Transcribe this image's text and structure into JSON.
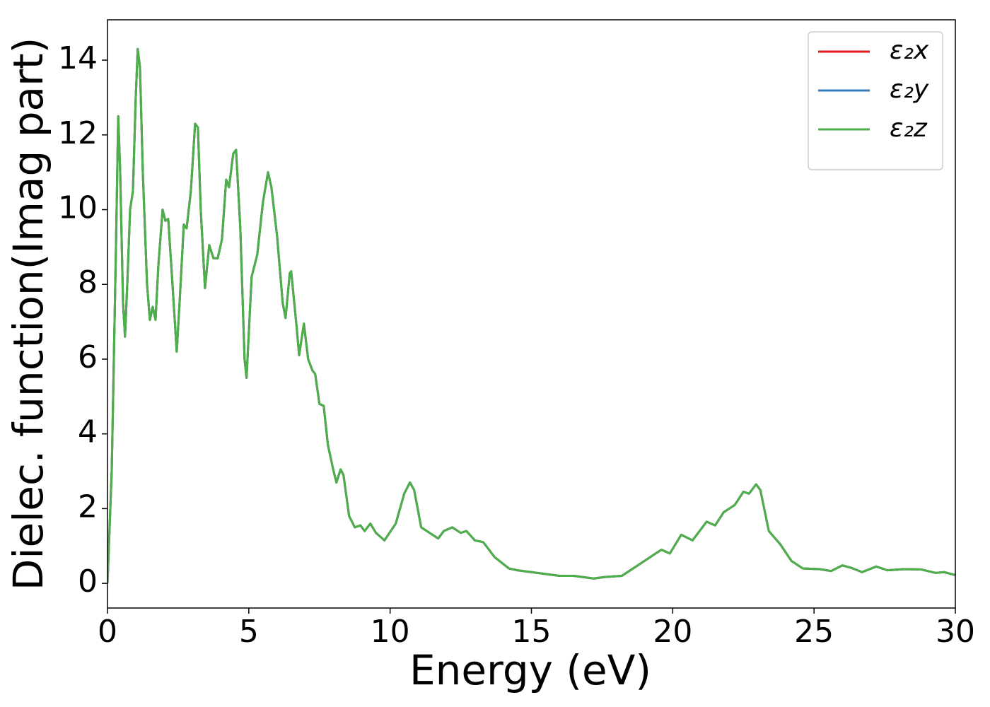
{
  "chart_data": {
    "type": "line",
    "xlabel": "Energy (eV)",
    "ylabel": "Dielec. function(Imag part)",
    "x": [
      0,
      0.15,
      0.3,
      0.38,
      0.45,
      0.55,
      0.62,
      0.7,
      0.8,
      0.9,
      1.0,
      1.07,
      1.15,
      1.25,
      1.4,
      1.5,
      1.6,
      1.7,
      1.8,
      1.95,
      2.05,
      2.15,
      2.3,
      2.45,
      2.55,
      2.7,
      2.8,
      2.95,
      3.1,
      3.2,
      3.3,
      3.45,
      3.6,
      3.75,
      3.9,
      4.05,
      4.2,
      4.3,
      4.45,
      4.55,
      4.7,
      4.85,
      4.92,
      5.1,
      5.3,
      5.5,
      5.68,
      5.8,
      6.0,
      6.2,
      6.3,
      6.45,
      6.5,
      6.7,
      6.78,
      6.95,
      7.1,
      7.25,
      7.35,
      7.5,
      7.65,
      7.8,
      8.0,
      8.1,
      8.25,
      8.35,
      8.55,
      8.75,
      8.95,
      9.1,
      9.3,
      9.5,
      9.8,
      10.2,
      10.5,
      10.7,
      10.85,
      11.1,
      11.4,
      11.7,
      11.9,
      12.2,
      12.5,
      12.7,
      13.0,
      13.3,
      13.7,
      14.2,
      14.5,
      15,
      15.5,
      16.0,
      16.5,
      17.2,
      17.6,
      18.2,
      18.6,
      19.0,
      19.6,
      19.9,
      20.3,
      20.7,
      21.2,
      21.5,
      21.8,
      22.2,
      22.5,
      22.7,
      22.95,
      23.1,
      23.4,
      23.8,
      24.2,
      24.6,
      25.2,
      25.6,
      26.0,
      26.3,
      26.7,
      27.2,
      27.6,
      28.2,
      28.8,
      29.3,
      29.6,
      30.0
    ],
    "series": [
      {
        "name": "ε₂x",
        "color": "#e41a1c",
        "values": [
          0,
          3,
          9,
          12.5,
          11,
          7.5,
          6.6,
          8,
          10,
          10.5,
          13,
          14.3,
          13.8,
          11,
          8,
          7.05,
          7.4,
          7.05,
          8.5,
          10,
          9.7,
          9.75,
          8,
          6.2,
          7.5,
          9.6,
          9.5,
          10.5,
          12.3,
          12.2,
          10,
          7.9,
          9.05,
          8.7,
          8.7,
          9.2,
          10.8,
          10.6,
          11.5,
          11.6,
          9.5,
          6,
          5.5,
          8.2,
          8.8,
          10.2,
          11,
          10.6,
          9.3,
          7.5,
          7.1,
          8.3,
          8.35,
          6.8,
          6.1,
          6.95,
          6,
          5.7,
          5.6,
          4.8,
          4.75,
          3.7,
          3,
          2.7,
          3.05,
          2.9,
          1.8,
          1.5,
          1.55,
          1.4,
          1.6,
          1.35,
          1.15,
          1.6,
          2.4,
          2.7,
          2.5,
          1.5,
          1.35,
          1.2,
          1.4,
          1.5,
          1.35,
          1.4,
          1.15,
          1.1,
          0.7,
          0.4,
          0.35,
          0.3,
          0.25,
          0.2,
          0.2,
          0.13,
          0.17,
          0.2,
          0.4,
          0.6,
          0.9,
          0.8,
          1.3,
          1.15,
          1.65,
          1.55,
          1.9,
          2.1,
          2.45,
          2.4,
          2.65,
          2.5,
          1.4,
          1.05,
          0.6,
          0.4,
          0.38,
          0.33,
          0.48,
          0.42,
          0.3,
          0.45,
          0.35,
          0.38,
          0.37,
          0.28,
          0.3,
          0.22
        ]
      },
      {
        "name": "ε₂y",
        "color": "#377eb8",
        "values": [
          0,
          3,
          9,
          12.5,
          11,
          7.5,
          6.6,
          8,
          10,
          10.5,
          13,
          14.3,
          13.8,
          11,
          8,
          7.05,
          7.4,
          7.05,
          8.5,
          10,
          9.7,
          9.75,
          8,
          6.2,
          7.5,
          9.6,
          9.5,
          10.5,
          12.3,
          12.2,
          10,
          7.9,
          9.05,
          8.7,
          8.7,
          9.2,
          10.8,
          10.6,
          11.5,
          11.6,
          9.5,
          6,
          5.5,
          8.2,
          8.8,
          10.2,
          11,
          10.6,
          9.3,
          7.5,
          7.1,
          8.3,
          8.35,
          6.8,
          6.1,
          6.95,
          6,
          5.7,
          5.6,
          4.8,
          4.75,
          3.7,
          3,
          2.7,
          3.05,
          2.9,
          1.8,
          1.5,
          1.55,
          1.4,
          1.6,
          1.35,
          1.15,
          1.6,
          2.4,
          2.7,
          2.5,
          1.5,
          1.35,
          1.2,
          1.4,
          1.5,
          1.35,
          1.4,
          1.15,
          1.1,
          0.7,
          0.4,
          0.35,
          0.3,
          0.25,
          0.2,
          0.2,
          0.13,
          0.17,
          0.2,
          0.4,
          0.6,
          0.9,
          0.8,
          1.3,
          1.15,
          1.65,
          1.55,
          1.9,
          2.1,
          2.45,
          2.4,
          2.65,
          2.5,
          1.4,
          1.05,
          0.6,
          0.4,
          0.38,
          0.33,
          0.48,
          0.42,
          0.3,
          0.45,
          0.35,
          0.38,
          0.37,
          0.28,
          0.3,
          0.22
        ]
      },
      {
        "name": "ε₂z",
        "color": "#4daf4a",
        "values": [
          0,
          3,
          9,
          12.5,
          11,
          7.5,
          6.6,
          8,
          10,
          10.5,
          13,
          14.3,
          13.8,
          11,
          8,
          7.05,
          7.4,
          7.05,
          8.5,
          10,
          9.7,
          9.75,
          8,
          6.2,
          7.5,
          9.6,
          9.5,
          10.5,
          12.3,
          12.2,
          10,
          7.9,
          9.05,
          8.7,
          8.7,
          9.2,
          10.8,
          10.6,
          11.5,
          11.6,
          9.5,
          6,
          5.5,
          8.2,
          8.8,
          10.2,
          11,
          10.6,
          9.3,
          7.5,
          7.1,
          8.3,
          8.35,
          6.8,
          6.1,
          6.95,
          6,
          5.7,
          5.6,
          4.8,
          4.75,
          3.7,
          3,
          2.7,
          3.05,
          2.9,
          1.8,
          1.5,
          1.55,
          1.4,
          1.6,
          1.35,
          1.15,
          1.6,
          2.4,
          2.7,
          2.5,
          1.5,
          1.35,
          1.2,
          1.4,
          1.5,
          1.35,
          1.4,
          1.15,
          1.1,
          0.7,
          0.4,
          0.35,
          0.3,
          0.25,
          0.2,
          0.2,
          0.13,
          0.17,
          0.2,
          0.4,
          0.6,
          0.9,
          0.8,
          1.3,
          1.15,
          1.65,
          1.55,
          1.9,
          2.1,
          2.45,
          2.4,
          2.65,
          2.5,
          1.4,
          1.05,
          0.6,
          0.4,
          0.38,
          0.33,
          0.48,
          0.42,
          0.3,
          0.45,
          0.35,
          0.38,
          0.37,
          0.28,
          0.3,
          0.22
        ]
      }
    ],
    "xlim": [
      0,
      30
    ],
    "xticks": [
      0,
      5,
      10,
      15,
      20,
      25,
      30
    ],
    "ylim": [
      -0.66,
      15.08
    ],
    "yticks": [
      0,
      2,
      4,
      6,
      8,
      10,
      12,
      14
    ],
    "grid": false,
    "legend": "upper right"
  }
}
